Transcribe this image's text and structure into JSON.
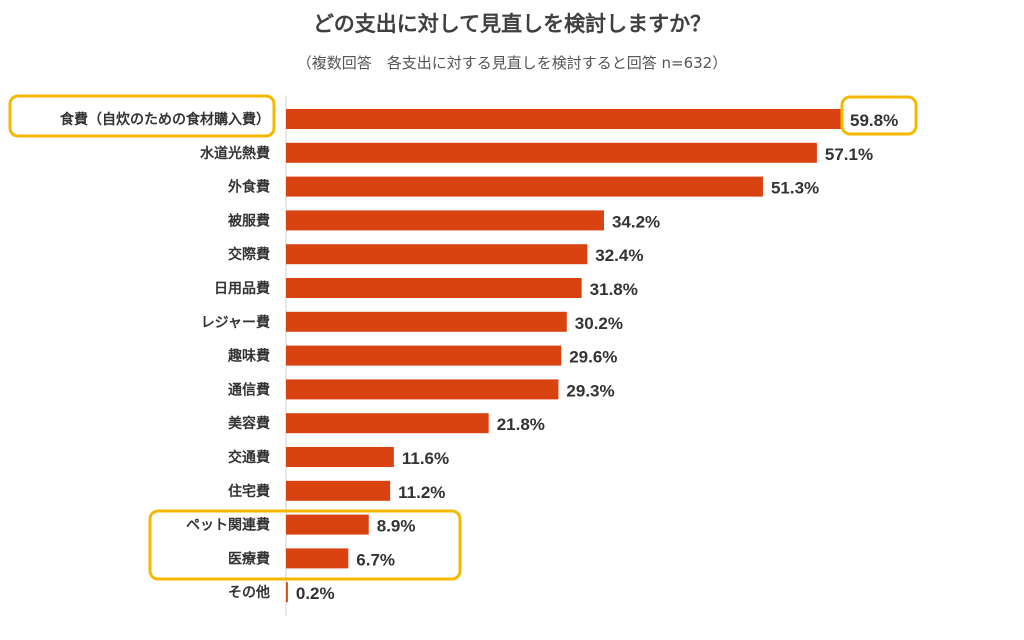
{
  "header": {
    "title": "どの支出に対して見直しを検討しますか？",
    "subtitle": "（複数回答　各支出に対する見直しを検討すると回答 n=632）"
  },
  "colors": {
    "bar": "#D94312",
    "highlight": "#F5B800",
    "axis": "#CFCFCF",
    "text": "#333333"
  },
  "chart_data": {
    "type": "bar",
    "orientation": "horizontal",
    "categories": [
      "食費（自炊のための食材購入費）",
      "水道光熱費",
      "外食費",
      "被服費",
      "交際費",
      "日用品費",
      "レジャー費",
      "趣味費",
      "通信費",
      "美容費",
      "交通費",
      "住宅費",
      "ペット関連費",
      "医療費",
      "その他"
    ],
    "values": [
      59.8,
      57.1,
      51.3,
      34.2,
      32.4,
      31.8,
      30.2,
      29.6,
      29.3,
      21.8,
      11.6,
      11.2,
      8.9,
      6.7,
      0.2
    ],
    "value_labels": [
      "59.8%",
      "57.1%",
      "51.3%",
      "34.2%",
      "32.4%",
      "31.8%",
      "30.2%",
      "29.6%",
      "29.3%",
      "21.8%",
      "11.6%",
      "11.2%",
      "8.9%",
      "6.7%",
      "0.2%"
    ],
    "xlim": [
      0,
      60
    ],
    "grid": false,
    "legend": "none",
    "highlighted_categories": [
      "食費（自炊のための食材購入費）",
      "59.8%",
      "ペット関連費",
      "医療費"
    ]
  }
}
